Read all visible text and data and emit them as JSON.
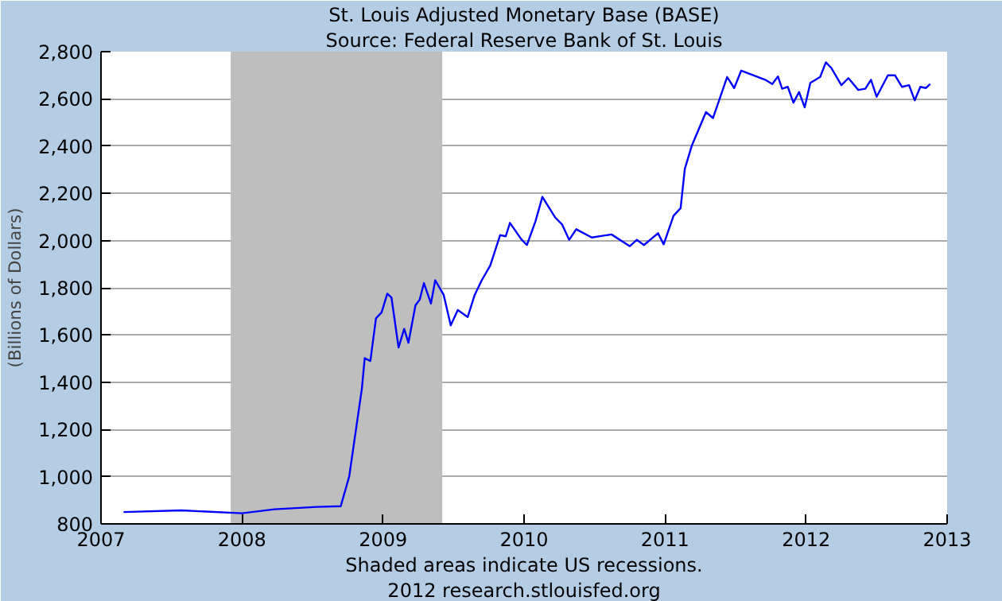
{
  "chart_data": {
    "type": "line",
    "title": "St. Louis Adjusted Monetary Base (BASE)",
    "subtitle": "Source: Federal Reserve Bank of St. Louis",
    "ylabel": "(Billions of Dollars)",
    "x": [
      2007.16,
      2007.57,
      2008.0,
      2008.23,
      2008.53,
      2008.7,
      2008.76,
      2008.82,
      2008.85,
      2008.87,
      2008.91,
      2008.95,
      2008.99,
      2009.03,
      2009.06,
      2009.11,
      2009.15,
      2009.18,
      2009.23,
      2009.26,
      2009.29,
      2009.34,
      2009.37,
      2009.43,
      2009.48,
      2009.53,
      2009.6,
      2009.65,
      2009.7,
      2009.76,
      2009.83,
      2009.87,
      2009.9,
      2009.98,
      2010.02,
      2010.08,
      2010.13,
      2010.22,
      2010.27,
      2010.32,
      2010.37,
      2010.48,
      2010.62,
      2010.75,
      2010.8,
      2010.85,
      2010.95,
      2010.99,
      2011.06,
      2011.11,
      2011.14,
      2011.19,
      2011.29,
      2011.34,
      2011.44,
      2011.49,
      2011.54,
      2011.71,
      2011.76,
      2011.8,
      2011.83,
      2011.87,
      2011.91,
      2011.95,
      2011.99,
      2012.03,
      2012.1,
      2012.14,
      2012.18,
      2012.25,
      2012.3,
      2012.37,
      2012.42,
      2012.46,
      2012.5,
      2012.58,
      2012.63,
      2012.68,
      2012.73,
      2012.77,
      2012.81,
      2012.85,
      2012.88
    ],
    "series": [
      {
        "color": "#0000ff",
        "values": [
          850,
          857,
          845,
          862,
          872,
          875,
          1001,
          1249,
          1373,
          1502,
          1490,
          1671,
          1696,
          1775,
          1758,
          1547,
          1626,
          1567,
          1726,
          1750,
          1820,
          1733,
          1832,
          1770,
          1641,
          1706,
          1676,
          1770,
          1832,
          1894,
          2023,
          2018,
          2075,
          2006,
          1981,
          2080,
          2185,
          2098,
          2068,
          2003,
          2048,
          2013,
          2026,
          1976,
          2003,
          1981,
          2031,
          1984,
          2105,
          2137,
          2304,
          2403,
          2544,
          2519,
          2693,
          2646,
          2720,
          2681,
          2663,
          2695,
          2643,
          2651,
          2584,
          2629,
          2564,
          2668,
          2693,
          2755,
          2730,
          2658,
          2688,
          2638,
          2643,
          2681,
          2609,
          2700,
          2700,
          2651,
          2658,
          2594,
          2651,
          2646,
          2663
        ]
      }
    ],
    "xlim": [
      2007,
      2013
    ],
    "xticks": [
      2007,
      2008,
      2009,
      2010,
      2011,
      2012,
      2013
    ],
    "ylim": [
      800,
      2800
    ],
    "yticks": [
      {
        "value": 800,
        "label": "800"
      },
      {
        "value": 1000,
        "label": "1,000"
      },
      {
        "value": 1200,
        "label": "1,200"
      },
      {
        "value": 1400,
        "label": "1,400"
      },
      {
        "value": 1600,
        "label": "1,600"
      },
      {
        "value": 1800,
        "label": "1,800"
      },
      {
        "value": 2000,
        "label": "2,000"
      },
      {
        "value": 2200,
        "label": "2,200"
      },
      {
        "value": 2400,
        "label": "2,400"
      },
      {
        "value": 2600,
        "label": "2,600"
      },
      {
        "value": 2800,
        "label": "2,800"
      }
    ],
    "bands": [
      {
        "axis": "x",
        "from": 2007.92,
        "to": 2009.42,
        "color": "#bebebe"
      }
    ],
    "grid": "y",
    "marker": "none",
    "line_style": "solid",
    "annotations": [
      "Shaded areas indicate US recessions.",
      "2012 research.stlouisfed.org"
    ]
  }
}
